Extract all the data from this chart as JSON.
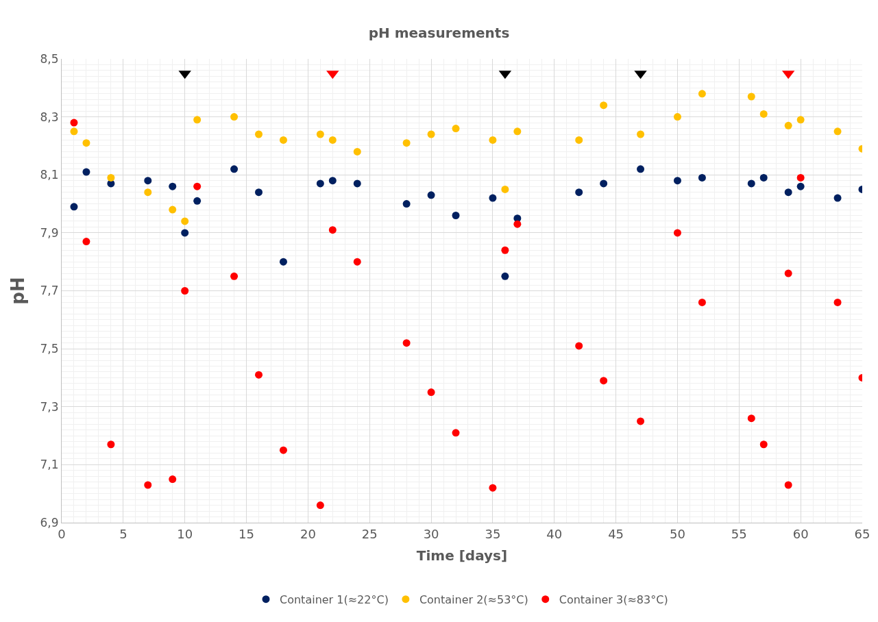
{
  "chart_data": {
    "type": "scatter",
    "title": "pH measurements",
    "xlabel": "Time [days]",
    "ylabel": "pH",
    "xlim": [
      0,
      65
    ],
    "xticks": [
      0,
      5,
      10,
      15,
      20,
      25,
      30,
      35,
      40,
      45,
      50,
      55,
      60,
      65
    ],
    "ylim": [
      6.9,
      8.5
    ],
    "yticks": [
      {
        "value": 6.9,
        "label": "6,9"
      },
      {
        "value": 7.1,
        "label": "7,1"
      },
      {
        "value": 7.3,
        "label": "7,3"
      },
      {
        "value": 7.5,
        "label": "7,5"
      },
      {
        "value": 7.7,
        "label": "7,7"
      },
      {
        "value": 7.9,
        "label": "7,9"
      },
      {
        "value": 8.1,
        "label": "8,1"
      },
      {
        "value": 8.3,
        "label": "8,3"
      },
      {
        "value": 8.5,
        "label": "8,5"
      }
    ],
    "grid": true,
    "legend": "bottom",
    "marker": "circle",
    "series": [
      {
        "name": "Container 1(≈22°C)",
        "color": "#002060",
        "x": [
          1,
          2,
          4,
          7,
          9,
          10,
          11,
          14,
          16,
          18,
          21,
          22,
          24,
          28,
          30,
          32,
          35,
          36,
          37,
          42,
          44,
          47,
          50,
          52,
          56,
          57,
          59,
          60,
          63,
          65
        ],
        "values": [
          7.99,
          8.11,
          8.07,
          8.08,
          8.06,
          7.9,
          8.01,
          8.12,
          8.04,
          7.8,
          8.07,
          8.08,
          8.07,
          8.0,
          8.03,
          7.96,
          8.02,
          7.75,
          7.95,
          8.04,
          8.07,
          8.12,
          8.08,
          8.09,
          8.07,
          8.09,
          8.04,
          8.06,
          8.02,
          8.05
        ]
      },
      {
        "name": "Container 2(≈53°C)",
        "color": "#ffc000",
        "x": [
          1,
          2,
          4,
          7,
          9,
          10,
          11,
          14,
          16,
          18,
          21,
          22,
          24,
          28,
          30,
          32,
          35,
          36,
          37,
          42,
          44,
          47,
          50,
          52,
          56,
          57,
          59,
          60,
          63,
          65
        ],
        "values": [
          8.25,
          8.21,
          8.09,
          8.04,
          7.98,
          7.94,
          8.29,
          8.3,
          8.24,
          8.22,
          8.24,
          8.22,
          8.18,
          8.21,
          8.24,
          8.26,
          8.22,
          8.05,
          8.25,
          8.22,
          8.34,
          8.24,
          8.3,
          8.38,
          8.37,
          8.31,
          8.27,
          8.29,
          8.25,
          8.19
        ]
      },
      {
        "name": "Container 3(≈83°C)",
        "color": "#ff0000",
        "x": [
          1,
          2,
          4,
          7,
          9,
          10,
          11,
          14,
          16,
          18,
          21,
          22,
          24,
          28,
          30,
          32,
          35,
          36,
          37,
          42,
          44,
          47,
          50,
          52,
          56,
          57,
          59,
          59,
          60,
          63,
          65
        ],
        "values": [
          8.28,
          7.87,
          7.17,
          7.03,
          7.05,
          7.7,
          8.06,
          7.75,
          7.41,
          7.15,
          6.96,
          7.91,
          7.8,
          7.52,
          7.35,
          7.21,
          7.02,
          7.84,
          7.93,
          7.51,
          7.39,
          7.25,
          7.9,
          7.66,
          7.26,
          7.17,
          7.76,
          7.03,
          8.09,
          7.66,
          7.4
        ]
      },
      {
        "color": "#000000",
        "marker": "triangle",
        "x": [
          10,
          36,
          47
        ],
        "values": [
          8.45,
          8.45,
          8.45
        ]
      },
      {
        "color": "#ff0000",
        "marker": "triangle",
        "x": [
          22,
          59
        ],
        "values": [
          8.45,
          8.45
        ]
      }
    ]
  }
}
